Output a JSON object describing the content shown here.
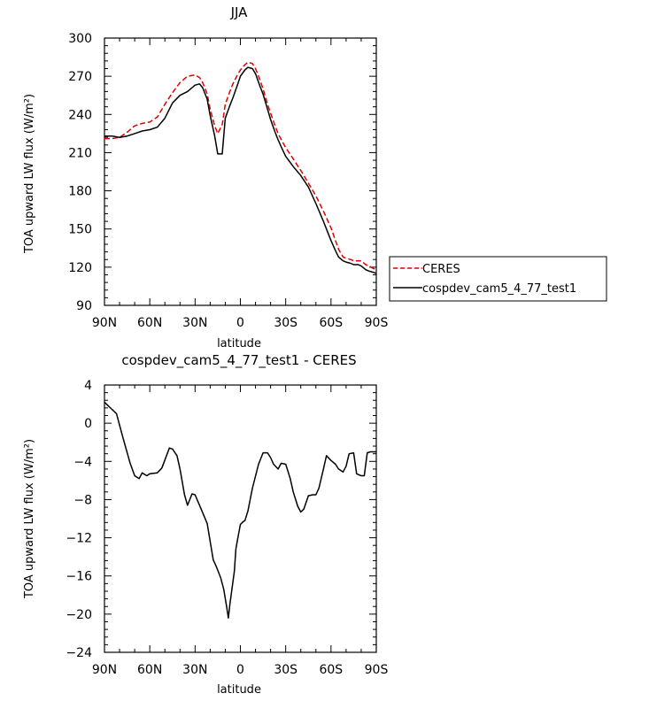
{
  "chart_data": [
    {
      "type": "line",
      "title": "JJA",
      "xlabel": "latitude",
      "ylabel": "TOA upward LW flux (W/m²)",
      "xlim": [
        90,
        -90
      ],
      "ylim": [
        90,
        300
      ],
      "x_tick_values": [
        90,
        60,
        30,
        0,
        -30,
        -60,
        -90
      ],
      "x_tick_labels": [
        "90N",
        "60N",
        "30N",
        "0",
        "30S",
        "60S",
        "90S"
      ],
      "y_tick_values": [
        90,
        120,
        150,
        180,
        210,
        240,
        270,
        300
      ],
      "y_tick_labels": [
        "90",
        "120",
        "150",
        "180",
        "210",
        "240",
        "270",
        "300"
      ],
      "legend_position": "right",
      "series": [
        {
          "name": "CERES",
          "color": "#e00000",
          "dash": "dashed",
          "x": [
            90,
            85,
            80,
            75,
            70,
            65,
            60,
            55,
            50,
            45,
            40,
            35,
            30,
            27,
            25,
            22,
            20,
            17,
            15,
            12,
            10,
            7,
            5,
            2,
            0,
            -3,
            -5,
            -8,
            -10,
            -13,
            -15,
            -18,
            -20,
            -23,
            -25,
            -28,
            -30,
            -35,
            -40,
            -45,
            -50,
            -55,
            -60,
            -63,
            -65,
            -68,
            -70,
            -73,
            -75,
            -78,
            -80,
            -83,
            -85,
            -88,
            -90
          ],
          "y": [
            221,
            221,
            222,
            226,
            231,
            233,
            234,
            238,
            248,
            257,
            265,
            270,
            271,
            269,
            265,
            256,
            244,
            231,
            225,
            232,
            248,
            258,
            264,
            271,
            275,
            279,
            281,
            280,
            276,
            267,
            260,
            248,
            241,
            231,
            225,
            218,
            214,
            205,
            196,
            186,
            176,
            164,
            151,
            141,
            134,
            128,
            127,
            126,
            125,
            125,
            125,
            122,
            121,
            119,
            118
          ]
        },
        {
          "name": "cospdev_cam5_4_77_test1",
          "color": "#000000",
          "dash": "solid",
          "x": [
            90,
            85,
            80,
            75,
            70,
            65,
            60,
            55,
            50,
            45,
            40,
            35,
            30,
            27,
            25,
            22,
            20,
            17,
            15,
            12,
            10,
            7,
            5,
            2,
            0,
            -3,
            -5,
            -8,
            -10,
            -13,
            -15,
            -18,
            -20,
            -23,
            -25,
            -28,
            -30,
            -35,
            -40,
            -45,
            -50,
            -55,
            -60,
            -63,
            -65,
            -68,
            -70,
            -73,
            -75,
            -78,
            -80,
            -83,
            -85,
            -88,
            -90
          ],
          "y": [
            223,
            223,
            222,
            223,
            225,
            227,
            228,
            230,
            237,
            249,
            255,
            258,
            263,
            264,
            261,
            252,
            239,
            223,
            209,
            209,
            237,
            247,
            253,
            263,
            270,
            275,
            277,
            276,
            272,
            262,
            256,
            244,
            236,
            226,
            220,
            212,
            207,
            199,
            192,
            183,
            170,
            156,
            141,
            133,
            128,
            125,
            124,
            123,
            122,
            122,
            121,
            118,
            117,
            116,
            115
          ]
        }
      ]
    },
    {
      "type": "line",
      "title": "cospdev_cam5_4_77_test1 - CERES",
      "xlabel": "latitude",
      "ylabel": "TOA upward LW flux (W/m²)",
      "xlim": [
        90,
        -90
      ],
      "ylim": [
        -24,
        4
      ],
      "x_tick_values": [
        90,
        60,
        30,
        0,
        -30,
        -60,
        -90
      ],
      "x_tick_labels": [
        "90N",
        "60N",
        "30N",
        "0",
        "30S",
        "60S",
        "90S"
      ],
      "y_tick_values": [
        -24,
        -20,
        -16,
        -12,
        -8,
        -4,
        0,
        4
      ],
      "y_tick_labels": [
        "−24",
        "−20",
        "−16",
        "−12",
        "−8",
        "−4",
        "0",
        "4"
      ],
      "series": [
        {
          "color": "#000000",
          "dash": "solid",
          "x": [
            90,
            82,
            78,
            73,
            70,
            67,
            65,
            62,
            60,
            55,
            52,
            47,
            45,
            42,
            40,
            37,
            35,
            32,
            30,
            26,
            22,
            18,
            16,
            13,
            11,
            9,
            8,
            7,
            4,
            3,
            2,
            0,
            -2,
            -3,
            -5,
            -8,
            -12,
            -15,
            -18,
            -20,
            -22,
            -25,
            -27,
            -30,
            -33,
            -35,
            -38,
            -40,
            -42,
            -45,
            -48,
            -50,
            -52,
            -55,
            -57,
            -60,
            -63,
            -65,
            -68,
            -70,
            -72,
            -75,
            -77,
            -80,
            -82,
            -84,
            -86,
            -88,
            -90
          ],
          "y": [
            2.2,
            1.0,
            -1.4,
            -4.2,
            -5.5,
            -5.8,
            -5.2,
            -5.5,
            -5.3,
            -5.2,
            -4.7,
            -2.6,
            -2.7,
            -3.4,
            -4.8,
            -7.5,
            -8.6,
            -7.4,
            -7.5,
            -9.0,
            -10.5,
            -14.3,
            -15.0,
            -16.2,
            -17.4,
            -19.3,
            -20.4,
            -19.0,
            -15.5,
            -13.2,
            -12.3,
            -10.6,
            -10.3,
            -10.2,
            -9.2,
            -6.8,
            -4.3,
            -3.1,
            -3.1,
            -3.6,
            -4.3,
            -4.8,
            -4.2,
            -4.3,
            -5.8,
            -7.2,
            -8.7,
            -9.3,
            -9.0,
            -7.6,
            -7.5,
            -7.5,
            -6.8,
            -4.8,
            -3.4,
            -3.9,
            -4.3,
            -4.8,
            -5.1,
            -4.5,
            -3.2,
            -3.1,
            -5.3,
            -5.5,
            -5.5,
            -3.1,
            -3.0,
            -3.0,
            -3.0
          ]
        }
      ]
    }
  ]
}
